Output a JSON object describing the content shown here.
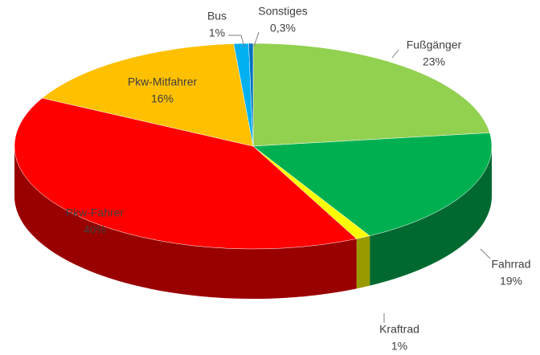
{
  "chart_data": {
    "type": "pie3d",
    "categories": [
      "Fußgänger",
      "Fahrrad",
      "Kraftrad",
      "Pkw-Fahrer",
      "Pkw-Mitfahrer",
      "Bus",
      "Sonstiges"
    ],
    "values": [
      23,
      19,
      1,
      40,
      16,
      1,
      0.3
    ],
    "value_labels": [
      "23%",
      "19%",
      "1%",
      "40%",
      "16%",
      "1%",
      "0,3%"
    ],
    "colors": [
      "#92d050",
      "#00b050",
      "#ffff00",
      "#ff0000",
      "#ffc000",
      "#00b0f0",
      "#0070c0"
    ]
  }
}
